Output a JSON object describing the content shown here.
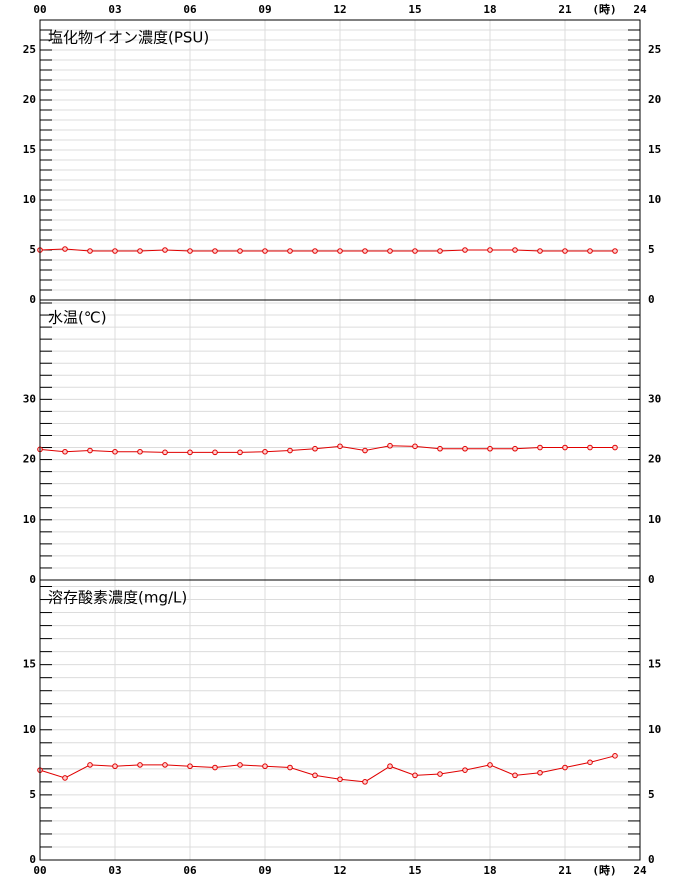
{
  "x_axis": {
    "xlim": [
      0,
      24
    ],
    "xticks": [
      {
        "value": 0,
        "label": "00"
      },
      {
        "value": 3,
        "label": "03"
      },
      {
        "value": 6,
        "label": "06"
      },
      {
        "value": 9,
        "label": "09"
      },
      12,
      15,
      18,
      21,
      24
    ],
    "unit": "(時)"
  },
  "chart_data": [
    {
      "type": "line",
      "title": "塩化物イオン濃度(PSU)",
      "color": "#e00000",
      "x": [
        0,
        1,
        2,
        3,
        4,
        5,
        6,
        7,
        8,
        9,
        10,
        11,
        12,
        13,
        14,
        15,
        16,
        17,
        18,
        19,
        20,
        21,
        22,
        23
      ],
      "values": [
        5.0,
        5.1,
        4.9,
        4.9,
        4.9,
        5.0,
        4.9,
        4.9,
        4.9,
        4.9,
        4.9,
        4.9,
        4.9,
        4.9,
        4.9,
        4.9,
        4.9,
        5.0,
        5.0,
        5.0,
        4.9,
        4.9,
        4.9,
        4.9
      ],
      "ylim": [
        0,
        28
      ],
      "yticks": [
        0,
        5,
        10,
        15,
        20,
        25
      ],
      "grid": true,
      "grid_step": 1
    },
    {
      "type": "line",
      "title": "水温(℃)",
      "color": "#e00000",
      "x": [
        0,
        1,
        2,
        3,
        4,
        5,
        6,
        7,
        8,
        9,
        10,
        11,
        12,
        13,
        14,
        15,
        16,
        17,
        18,
        19,
        20,
        21,
        22,
        23
      ],
      "values": [
        21.7,
        21.3,
        21.5,
        21.3,
        21.3,
        21.2,
        21.2,
        21.2,
        21.2,
        21.3,
        21.5,
        21.8,
        22.2,
        21.5,
        22.3,
        22.2,
        21.8,
        21.8,
        21.8,
        21.8,
        22.0,
        22.0,
        22.0,
        22.0
      ],
      "ylim": [
        0,
        46.5
      ],
      "yticks": [
        0,
        10,
        20,
        30
      ],
      "grid": true,
      "grid_step": 2
    },
    {
      "type": "line",
      "title": "溶存酸素濃度(mg/L)",
      "color": "#e00000",
      "x": [
        0,
        1,
        2,
        3,
        4,
        5,
        6,
        7,
        8,
        9,
        10,
        11,
        12,
        13,
        14,
        15,
        16,
        17,
        18,
        19,
        20,
        21,
        22,
        23
      ],
      "values": [
        6.9,
        6.3,
        7.3,
        7.2,
        7.3,
        7.3,
        7.2,
        7.1,
        7.3,
        7.2,
        7.1,
        6.5,
        6.2,
        6.0,
        7.2,
        6.5,
        6.6,
        6.9,
        7.3,
        6.5,
        6.7,
        7.1,
        7.5,
        8.0
      ],
      "ylim": [
        0,
        21.5
      ],
      "yticks": [
        0,
        5,
        10,
        15
      ],
      "grid": true,
      "grid_step": 1
    }
  ]
}
